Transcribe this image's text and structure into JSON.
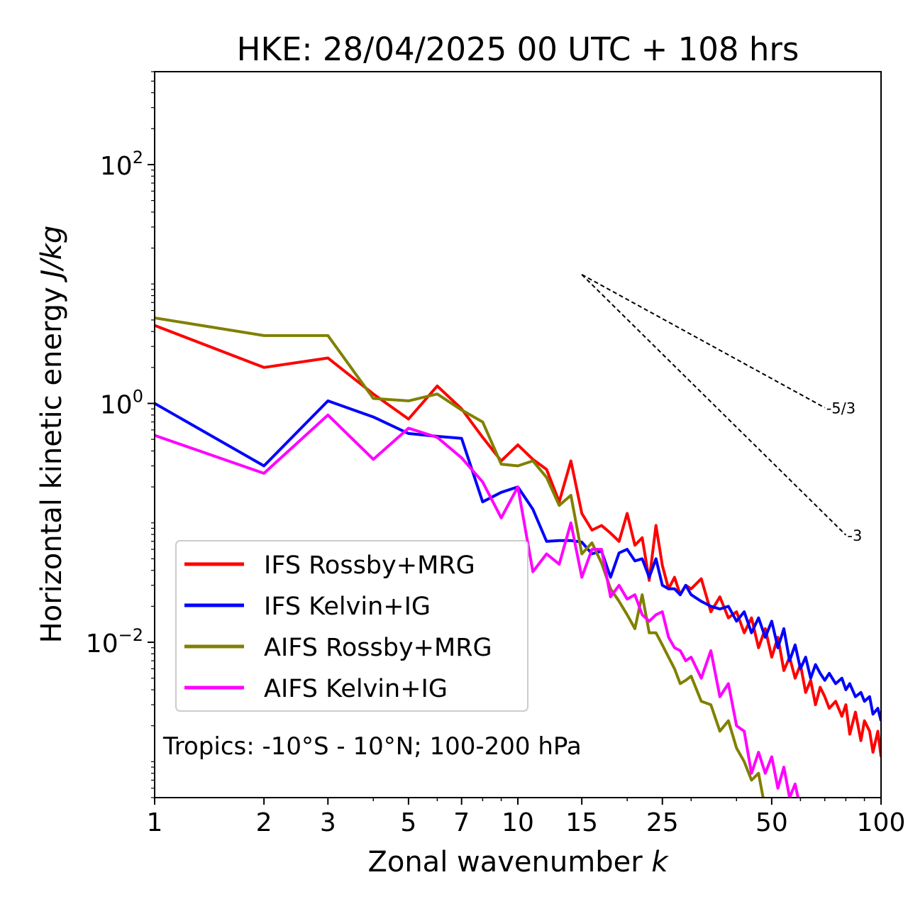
{
  "chart_data": {
    "type": "line",
    "title": "HKE: 28/04/2025 00 UTC + 108 hrs",
    "xlabel": "Zonal wavenumber",
    "xlabel_var": "k",
    "ylabel": "Horizontal kinetic energy",
    "ylabel_units": "J/kg",
    "x_scale": "log",
    "y_scale": "log",
    "xlim": [
      1,
      100
    ],
    "ylim": [
      0.0005,
      600
    ],
    "x_ticks": [
      1,
      2,
      3,
      5,
      7,
      10,
      15,
      25,
      50,
      100
    ],
    "x_tick_labels": [
      "1",
      "2",
      "3",
      "5",
      "7",
      "10",
      "15",
      "25",
      "50",
      "100"
    ],
    "y_ticks": [
      0.01,
      1,
      100
    ],
    "y_tick_base": "10",
    "y_tick_exponents": [
      "−2",
      "0",
      "2"
    ],
    "grid": false,
    "legend_position": "lower-left",
    "annotation": "Tropics: -10°S - 10°N; 100-200 hPa",
    "reference_slopes": [
      {
        "label": "-5/3",
        "slope": -1.6667,
        "x": [
          15,
          70
        ],
        "y_start": 12
      },
      {
        "label": "-3",
        "slope": -3,
        "x": [
          15,
          80
        ],
        "y_start": 12
      }
    ],
    "series": [
      {
        "name": "IFS Rossby+MRG",
        "color": "#ff0000",
        "points": [
          [
            1,
            4.5
          ],
          [
            2,
            2.0
          ],
          [
            3,
            2.4
          ],
          [
            4,
            1.2
          ],
          [
            5,
            0.74
          ],
          [
            6,
            1.4
          ],
          [
            7,
            0.9
          ],
          [
            8,
            0.52
          ],
          [
            9,
            0.33
          ],
          [
            10,
            0.45
          ],
          [
            11,
            0.34
          ],
          [
            12,
            0.28
          ],
          [
            13,
            0.15
          ],
          [
            14,
            0.33
          ],
          [
            15,
            0.12
          ],
          [
            16,
            0.087
          ],
          [
            17,
            0.095
          ],
          [
            18,
            0.082
          ],
          [
            19,
            0.07
          ],
          [
            20,
            0.12
          ],
          [
            21,
            0.065
          ],
          [
            22,
            0.075
          ],
          [
            23,
            0.033
          ],
          [
            24,
            0.095
          ],
          [
            25,
            0.044
          ],
          [
            26,
            0.028
          ],
          [
            27,
            0.035
          ],
          [
            28,
            0.025
          ],
          [
            29,
            0.03
          ],
          [
            30,
            0.028
          ],
          [
            32,
            0.034
          ],
          [
            34,
            0.018
          ],
          [
            36,
            0.024
          ],
          [
            38,
            0.016
          ],
          [
            40,
            0.018
          ],
          [
            42,
            0.012
          ],
          [
            44,
            0.016
          ],
          [
            46,
            0.009
          ],
          [
            48,
            0.013
          ],
          [
            50,
            0.0075
          ],
          [
            52,
            0.011
          ],
          [
            54,
            0.0058
          ],
          [
            56,
            0.0075
          ],
          [
            58,
            0.005
          ],
          [
            60,
            0.0065
          ],
          [
            62,
            0.0038
          ],
          [
            64,
            0.0048
          ],
          [
            66,
            0.003
          ],
          [
            68,
            0.0042
          ],
          [
            70,
            0.0035
          ],
          [
            72,
            0.0028
          ],
          [
            75,
            0.0032
          ],
          [
            78,
            0.0024
          ],
          [
            80,
            0.003
          ],
          [
            82,
            0.0017
          ],
          [
            85,
            0.0026
          ],
          [
            88,
            0.0015
          ],
          [
            90,
            0.0022
          ],
          [
            93,
            0.0018
          ],
          [
            95,
            0.0012
          ],
          [
            98,
            0.0018
          ],
          [
            100,
            0.0011
          ]
        ]
      },
      {
        "name": "IFS Kelvin+IG",
        "color": "#0000ff",
        "points": [
          [
            1,
            1.0
          ],
          [
            2,
            0.3
          ],
          [
            3,
            1.05
          ],
          [
            4,
            0.77
          ],
          [
            5,
            0.56
          ],
          [
            6,
            0.53
          ],
          [
            7,
            0.51
          ],
          [
            8,
            0.15
          ],
          [
            9,
            0.18
          ],
          [
            10,
            0.2
          ],
          [
            11,
            0.13
          ],
          [
            12,
            0.07
          ],
          [
            13,
            0.071
          ],
          [
            14,
            0.071
          ],
          [
            15,
            0.069
          ],
          [
            16,
            0.055
          ],
          [
            17,
            0.058
          ],
          [
            18,
            0.035
          ],
          [
            19,
            0.056
          ],
          [
            20,
            0.06
          ],
          [
            21,
            0.048
          ],
          [
            22,
            0.05
          ],
          [
            23,
            0.035
          ],
          [
            24,
            0.05
          ],
          [
            25,
            0.03
          ],
          [
            26,
            0.028
          ],
          [
            27,
            0.028
          ],
          [
            28,
            0.025
          ],
          [
            29,
            0.03
          ],
          [
            30,
            0.025
          ],
          [
            32,
            0.022
          ],
          [
            34,
            0.02
          ],
          [
            36,
            0.019
          ],
          [
            38,
            0.02
          ],
          [
            40,
            0.015
          ],
          [
            42,
            0.018
          ],
          [
            44,
            0.012
          ],
          [
            46,
            0.016
          ],
          [
            48,
            0.011
          ],
          [
            50,
            0.015
          ],
          [
            52,
            0.009
          ],
          [
            54,
            0.013
          ],
          [
            56,
            0.007
          ],
          [
            58,
            0.0095
          ],
          [
            60,
            0.006
          ],
          [
            62,
            0.0075
          ],
          [
            64,
            0.005
          ],
          [
            66,
            0.0065
          ],
          [
            68,
            0.0055
          ],
          [
            70,
            0.0048
          ],
          [
            72,
            0.0055
          ],
          [
            75,
            0.0045
          ],
          [
            78,
            0.005
          ],
          [
            80,
            0.004
          ],
          [
            82,
            0.0045
          ],
          [
            85,
            0.0035
          ],
          [
            88,
            0.0038
          ],
          [
            90,
            0.0032
          ],
          [
            93,
            0.0035
          ],
          [
            95,
            0.0025
          ],
          [
            98,
            0.0028
          ],
          [
            100,
            0.0022
          ]
        ]
      },
      {
        "name": "AIFS Rossby+MRG",
        "color": "#808000",
        "points": [
          [
            1,
            5.2
          ],
          [
            2,
            3.7
          ],
          [
            3,
            3.7
          ],
          [
            4,
            1.1
          ],
          [
            5,
            1.05
          ],
          [
            6,
            1.2
          ],
          [
            7,
            0.88
          ],
          [
            8,
            0.7
          ],
          [
            9,
            0.31
          ],
          [
            10,
            0.3
          ],
          [
            11,
            0.33
          ],
          [
            12,
            0.24
          ],
          [
            13,
            0.14
          ],
          [
            14,
            0.17
          ],
          [
            15,
            0.055
          ],
          [
            16,
            0.068
          ],
          [
            17,
            0.046
          ],
          [
            18,
            0.028
          ],
          [
            19,
            0.022
          ],
          [
            20,
            0.017
          ],
          [
            21,
            0.013
          ],
          [
            22,
            0.025
          ],
          [
            23,
            0.012
          ],
          [
            24,
            0.012
          ],
          [
            25,
            0.0095
          ],
          [
            26,
            0.0075
          ],
          [
            27,
            0.006
          ],
          [
            28,
            0.0045
          ],
          [
            29,
            0.0048
          ],
          [
            30,
            0.0052
          ],
          [
            32,
            0.0032
          ],
          [
            34,
            0.003
          ],
          [
            36,
            0.0018
          ],
          [
            38,
            0.0022
          ],
          [
            40,
            0.0013
          ],
          [
            42,
            0.001
          ],
          [
            44,
            0.0007
          ],
          [
            46,
            0.0008
          ],
          [
            48,
            0.0004
          ]
        ]
      },
      {
        "name": "AIFS Kelvin+IG",
        "color": "#ff00ff",
        "points": [
          [
            1,
            0.54
          ],
          [
            2,
            0.26
          ],
          [
            3,
            0.8
          ],
          [
            4,
            0.34
          ],
          [
            5,
            0.62
          ],
          [
            6,
            0.52
          ],
          [
            7,
            0.35
          ],
          [
            8,
            0.22
          ],
          [
            9,
            0.11
          ],
          [
            10,
            0.2
          ],
          [
            11,
            0.039
          ],
          [
            12,
            0.055
          ],
          [
            13,
            0.045
          ],
          [
            14,
            0.1
          ],
          [
            15,
            0.035
          ],
          [
            16,
            0.06
          ],
          [
            17,
            0.06
          ],
          [
            18,
            0.024
          ],
          [
            19,
            0.03
          ],
          [
            20,
            0.023
          ],
          [
            21,
            0.025
          ],
          [
            22,
            0.017
          ],
          [
            23,
            0.015
          ],
          [
            24,
            0.017
          ],
          [
            25,
            0.018
          ],
          [
            26,
            0.011
          ],
          [
            27,
            0.009
          ],
          [
            28,
            0.0085
          ],
          [
            29,
            0.007
          ],
          [
            30,
            0.0075
          ],
          [
            32,
            0.005
          ],
          [
            34,
            0.0085
          ],
          [
            36,
            0.0035
          ],
          [
            38,
            0.0045
          ],
          [
            40,
            0.002
          ],
          [
            42,
            0.0018
          ],
          [
            44,
            0.0008
          ],
          [
            46,
            0.0012
          ],
          [
            48,
            0.0008
          ],
          [
            50,
            0.0011
          ],
          [
            52,
            0.0006
          ],
          [
            54,
            0.0009
          ],
          [
            56,
            0.0005
          ],
          [
            58,
            0.00065
          ],
          [
            60,
            0.0004
          ]
        ]
      }
    ]
  }
}
